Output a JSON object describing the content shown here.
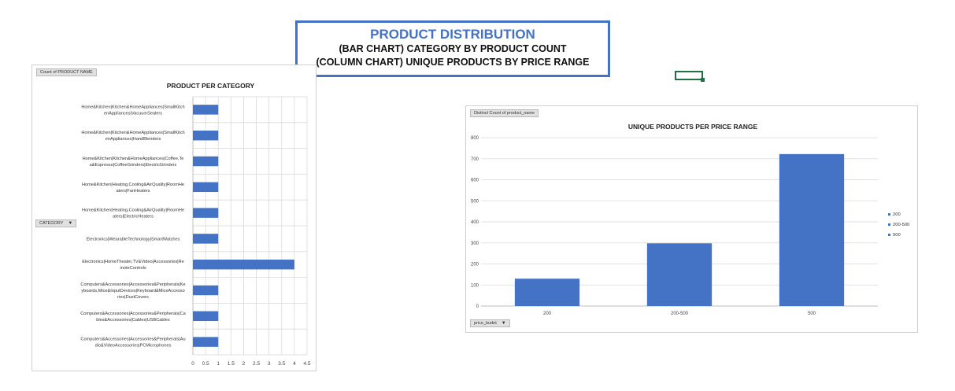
{
  "header": {
    "title": "PRODUCT DISTRIBUTION",
    "line1": "(BAR CHART) CATEGORY BY PRODUCT COUNT",
    "line2": "(COLUMN CHART) UNIQUE PRODUCTS BY PRICE RANGE"
  },
  "colors": {
    "bar": "#4472c4",
    "frame": "#4472c4",
    "selection": "#1e7145",
    "grid": "#d9d9d9"
  },
  "left_chart": {
    "field_button": "Count of PRODUCT NAME",
    "axis_field_button": "CATEGORY"
  },
  "right_chart": {
    "field_button": "Distinct Count of product_name",
    "axis_field_button": "price_budet"
  },
  "chart_data": [
    {
      "type": "bar",
      "title": "PRODUCT PER CATEGORY",
      "orientation": "horizontal",
      "categories": [
        [
          "Home&Kitchen|Kitchen&HomeAppliances|SmallKitch",
          "enAppliances|VacuumSealers"
        ],
        [
          "Home&Kitchen|Kitchen&HomeAppliances|SmallKitch",
          "enAppliances|HandBlenders"
        ],
        [
          "Home&Kitchen|Kitchen&HomeAppliances|Coffee,Te",
          "a&Espresso|CoffeeGrinders|ElectricGrinders"
        ],
        [
          "Home&Kitchen|Heating,Cooling&AirQuality|RoomHe",
          "aters|FanHeaters"
        ],
        [
          "Home&Kitchen|Heating,Cooling&AirQuality|RoomHe",
          "aters|ElectricHeaters"
        ],
        [
          "Electronics|WearableTechnology|SmartWatches"
        ],
        [
          "Electronics|HomeTheater,TV&Video|Accessories|Re",
          "moteControls"
        ],
        [
          "Computers&Accessories|Accessories&Peripherals|Ke",
          "yboards,Mice&InputDevices|Keyboard&MiceAccesso",
          "ries|DustCovers"
        ],
        [
          "Computers&Accessories|Accessories&Peripherals|Ca",
          "bles&Accessories|Cables|USBCables"
        ],
        [
          "Computers&Accessories|Accessories&Peripherals|Au",
          "dio&VideoAccessories|PCMicrophones"
        ]
      ],
      "values": [
        1,
        1,
        1,
        1,
        1,
        1,
        4,
        1,
        1,
        1
      ],
      "xlim": [
        0,
        4.5
      ],
      "xticks": [
        "0",
        "0.5",
        "1",
        "1.5",
        "2",
        "2.5",
        "3",
        "3.5",
        "4",
        "4.5"
      ],
      "grid": true
    },
    {
      "type": "bar",
      "title": "UNIQUE PRODUCTS PER PRICE RANGE",
      "orientation": "vertical",
      "categories": [
        "200",
        "200-500",
        "500"
      ],
      "values": [
        130,
        298,
        722
      ],
      "ylim": [
        0,
        800
      ],
      "yticks": [
        "0",
        "100",
        "200",
        "300",
        "400",
        "500",
        "600",
        "700",
        "800"
      ],
      "legend": [
        "200",
        "200-500",
        "500"
      ],
      "legend_position": "right",
      "grid": true
    }
  ]
}
